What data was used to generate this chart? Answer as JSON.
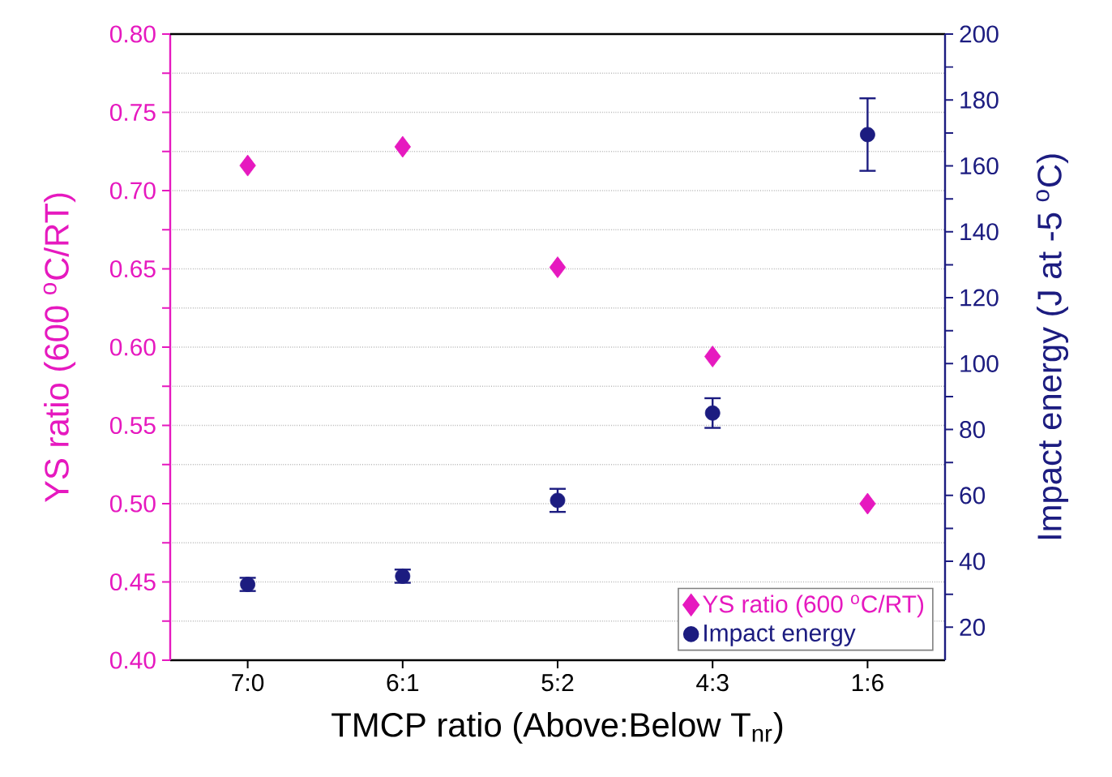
{
  "chart_data": {
    "type": "scatter",
    "xlabel": "TMCP ratio (Above:Below T$_{nr}$)",
    "ylabel": "YS ratio (600 $^{o}$C/RT)",
    "y2label": "Impact energy (J at -5 $^{o}$C)",
    "categories": [
      "7:0",
      "6:1",
      "5:2",
      "4:3",
      "1:6"
    ],
    "series": [
      {
        "name": "YS ratio (600 $^{o}$C/RT)",
        "color": "#e619bf",
        "marker": "diamond",
        "values": [
          0.716,
          0.728,
          0.651,
          0.594,
          0.5
        ]
      },
      {
        "name": "Impact energy",
        "color": "#1c1c80",
        "marker": "circle",
        "axis": "y2",
        "values": [
          33,
          35.5,
          58.5,
          85,
          169.5
        ],
        "errors": [
          2,
          2,
          3.5,
          4.5,
          11
        ]
      }
    ],
    "ylim": [
      0.4,
      0.8
    ],
    "yticks": [
      {
        "value": 0.4,
        "label": "0.40"
      },
      {
        "value": 0.425,
        "label": null
      },
      {
        "value": 0.45,
        "label": "0.45"
      },
      {
        "value": 0.475,
        "label": null
      },
      {
        "value": 0.5,
        "label": "0.50"
      },
      {
        "value": 0.525,
        "label": null
      },
      {
        "value": 0.55,
        "label": "0.55"
      },
      {
        "value": 0.575,
        "label": null
      },
      {
        "value": 0.6,
        "label": "0.60"
      },
      {
        "value": 0.625,
        "label": null
      },
      {
        "value": 0.65,
        "label": "0.65"
      },
      {
        "value": 0.675,
        "label": null
      },
      {
        "value": 0.7,
        "label": "0.70"
      },
      {
        "value": 0.725,
        "label": null
      },
      {
        "value": 0.75,
        "label": "0.75"
      },
      {
        "value": 0.775,
        "label": null
      },
      {
        "value": 0.8,
        "label": "0.80"
      }
    ],
    "y2lim": [
      10,
      200
    ],
    "y2ticks": [
      20,
      {
        "value": 30,
        "label": null
      },
      40,
      {
        "value": 50,
        "label": null
      },
      60,
      {
        "value": 70,
        "label": null
      },
      80,
      {
        "value": 90,
        "label": null
      },
      100,
      {
        "value": 110,
        "label": null
      },
      120,
      {
        "value": 130,
        "label": null
      },
      140,
      {
        "value": 150,
        "label": null
      },
      160,
      {
        "value": 170,
        "label": null
      },
      180,
      {
        "value": 190,
        "label": null
      },
      200
    ],
    "grid": "y",
    "legend": "bottom right"
  }
}
